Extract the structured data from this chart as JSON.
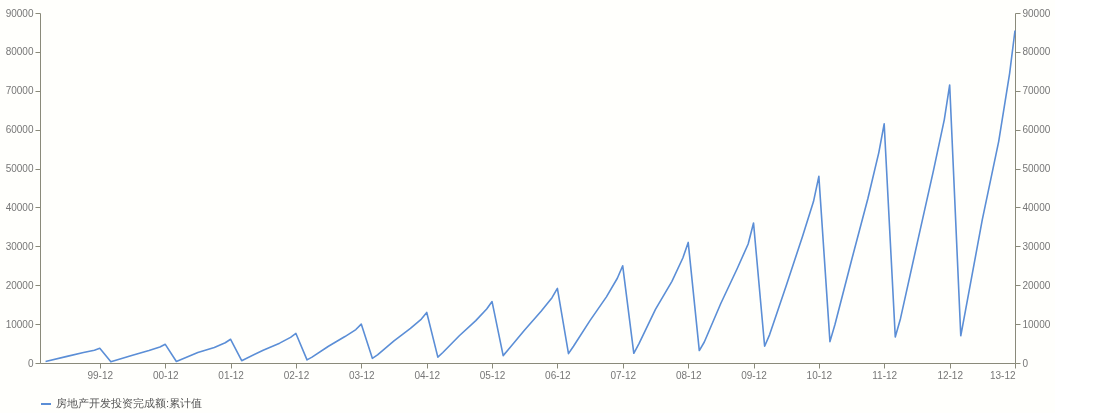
{
  "chart_data": {
    "type": "line",
    "x": [
      "1999-02",
      "1999-06",
      "1999-09",
      "1999-11",
      "1999-12",
      "2000-02",
      "2000-06",
      "2000-09",
      "2000-11",
      "2000-12",
      "2001-02",
      "2001-06",
      "2001-09",
      "2001-11",
      "2001-12",
      "2002-02",
      "2002-06",
      "2002-09",
      "2002-11",
      "2002-12",
      "2003-02",
      "2003-03",
      "2003-06",
      "2003-09",
      "2003-11",
      "2003-12",
      "2004-02",
      "2004-03",
      "2004-06",
      "2004-09",
      "2004-11",
      "2004-12",
      "2005-02",
      "2005-03",
      "2005-06",
      "2005-09",
      "2005-11",
      "2005-12",
      "2006-02",
      "2006-03",
      "2006-06",
      "2006-09",
      "2006-11",
      "2006-12",
      "2007-02",
      "2007-03",
      "2007-06",
      "2007-09",
      "2007-11",
      "2007-12",
      "2008-02",
      "2008-03",
      "2008-06",
      "2008-09",
      "2008-11",
      "2008-12",
      "2009-02",
      "2009-03",
      "2009-06",
      "2009-09",
      "2009-11",
      "2009-12",
      "2010-02",
      "2010-03",
      "2010-06",
      "2010-09",
      "2010-11",
      "2010-12",
      "2011-02",
      "2011-03",
      "2011-06",
      "2011-09",
      "2011-11",
      "2011-12",
      "2012-02",
      "2012-03",
      "2012-06",
      "2012-09",
      "2012-11",
      "2012-12",
      "2013-02",
      "2013-03",
      "2013-06",
      "2013-09",
      "2013-11",
      "2013-12"
    ],
    "series": [
      {
        "name": "房地产开发投资完成额:累计值",
        "color": "#5b8ed6",
        "values": [
          400,
          1700,
          2700,
          3300,
          3800,
          300,
          2000,
          3200,
          4100,
          4800,
          400,
          2700,
          4000,
          5200,
          6100,
          600,
          3300,
          5100,
          6600,
          7600,
          800,
          1500,
          4300,
          6800,
          8600,
          10000,
          1200,
          2100,
          5700,
          8900,
          11300,
          13000,
          1500,
          2700,
          7000,
          10900,
          13900,
          15800,
          1900,
          3400,
          8500,
          13300,
          16800,
          19200,
          2400,
          4300,
          10900,
          17000,
          21800,
          25000,
          2500,
          5000,
          13800,
          21000,
          27000,
          31000,
          3200,
          5400,
          15300,
          24300,
          30600,
          36000,
          4300,
          7300,
          19800,
          32600,
          41500,
          48000,
          5500,
          9900,
          26300,
          42300,
          54100,
          61500,
          6700,
          11400,
          30500,
          49400,
          62600,
          71500,
          7000,
          13900,
          36800,
          57000,
          74500,
          85500
        ]
      }
    ],
    "xlim": [
      "1999-01-01",
      "2013-12-01"
    ],
    "xticks": [
      {
        "value": "1999-12",
        "label": "99-12"
      },
      {
        "value": "2000-12",
        "label": "00-12"
      },
      {
        "value": "2001-12",
        "label": "01-12"
      },
      {
        "value": "2002-12",
        "label": "02-12"
      },
      {
        "value": "2003-12",
        "label": "03-12"
      },
      {
        "value": "2004-12",
        "label": "04-12"
      },
      {
        "value": "2005-12",
        "label": "05-12"
      },
      {
        "value": "2006-12",
        "label": "06-12"
      },
      {
        "value": "2007-12",
        "label": "07-12"
      },
      {
        "value": "2008-12",
        "label": "08-12"
      },
      {
        "value": "2009-12",
        "label": "09-12"
      },
      {
        "value": "2010-12",
        "label": "10-12"
      },
      {
        "value": "2011-12",
        "label": "11-12"
      },
      {
        "value": "2012-12",
        "label": "12-12"
      },
      {
        "value": "2013-12",
        "label": "13-12"
      }
    ],
    "ylim": [
      0,
      90000
    ],
    "yticks": [
      0,
      10000,
      20000,
      30000,
      40000,
      50000,
      60000,
      70000,
      80000,
      90000
    ],
    "y2lim": [
      0,
      90000
    ],
    "y2ticks": [
      0,
      10000,
      20000,
      30000,
      40000,
      50000,
      60000,
      70000,
      80000,
      90000
    ],
    "grid": false,
    "legend": "bottom",
    "marker": "none",
    "line_style": "solid"
  }
}
